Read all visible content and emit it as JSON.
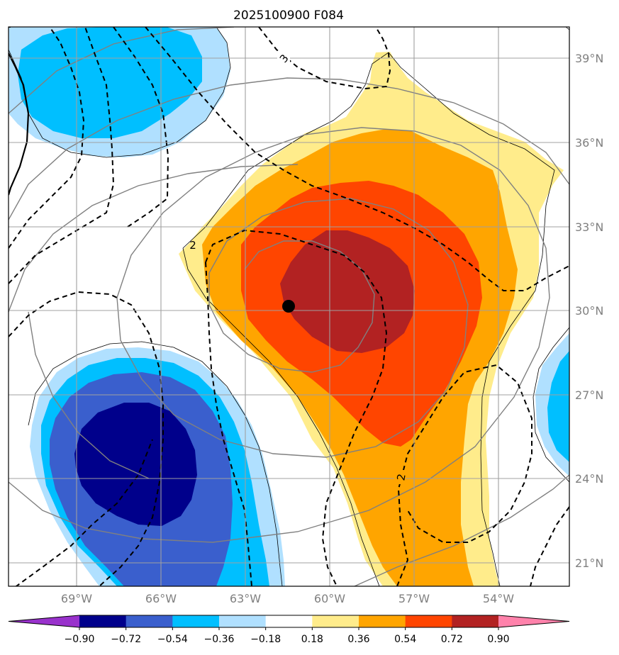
{
  "chart_data": {
    "type": "map",
    "title": "2025100900 F084",
    "lon_ticks": [
      "69°W",
      "66°W",
      "63°W",
      "60°W",
      "57°W",
      "54°W"
    ],
    "lat_ticks": [
      "39°N",
      "36°N",
      "33°N",
      "30°N",
      "27°N",
      "24°N",
      "21°N"
    ],
    "colorbar": {
      "levels": [
        "−0.90",
        "−0.72",
        "−0.54",
        "−0.36",
        "−0.18",
        "0.18",
        "0.36",
        "0.54",
        "0.72",
        "0.90"
      ],
      "colors": [
        "#9932cc",
        "#00008b",
        "#3a5fcd",
        "#00bfff",
        "#b0e0ff",
        "#ffffff",
        "#ffec8b",
        "#ffa500",
        "#ff4500",
        "#b22222",
        "#ff82ab"
      ],
      "extend": "both"
    },
    "contour_labels": [
      "3",
      "2",
      "2"
    ],
    "center_marker": {
      "lon": -61.5,
      "lat": 30.1
    },
    "grid": true
  }
}
